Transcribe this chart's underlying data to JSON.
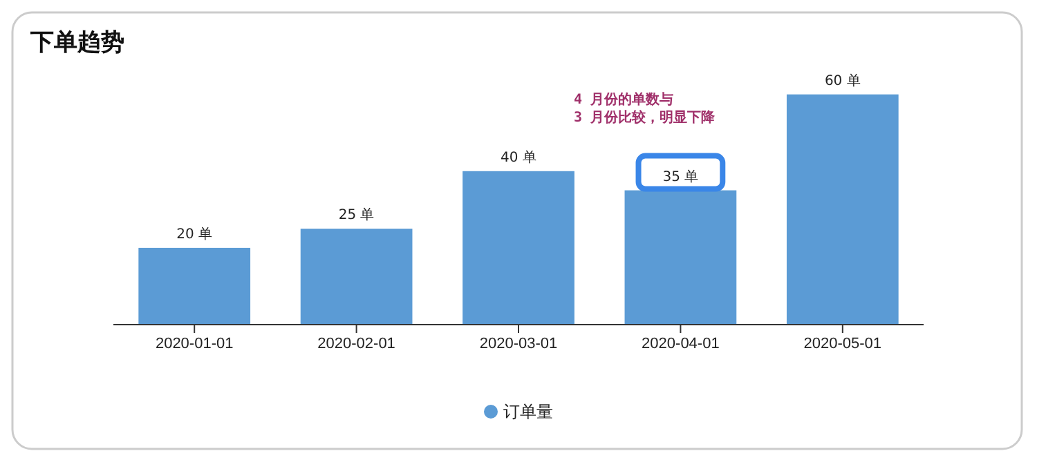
{
  "chart_data": {
    "type": "bar",
    "title": "下单趋势",
    "categories": [
      "2020-01-01",
      "2020-02-01",
      "2020-03-01",
      "2020-04-01",
      "2020-05-01"
    ],
    "series": [
      {
        "name": "订单量",
        "color": "#5b9bd5",
        "values": [
          20,
          25,
          40,
          35,
          60
        ],
        "value_labels": [
          "20 单",
          "25 单",
          "40 单",
          "35 单",
          "60 单"
        ]
      }
    ],
    "annotations": [
      "4 月份的单数与\n3 月份比较，明显下降"
    ],
    "legend": "bottom"
  }
}
